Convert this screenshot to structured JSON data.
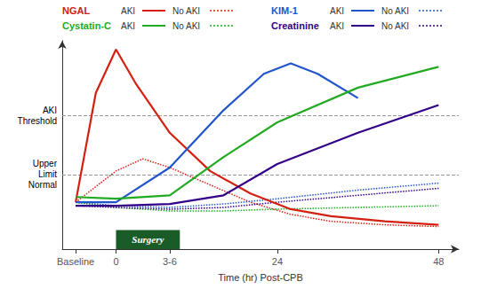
{
  "chart_data": {
    "type": "line",
    "xlabel": "Time (hr) Post-CPB",
    "xlim": [
      -8,
      51
    ],
    "xticks": [
      {
        "value": -6,
        "label": "Baseline"
      },
      0,
      {
        "value": 8,
        "label": "3-6"
      },
      24,
      48
    ],
    "ylim": [
      -0.05,
      1.15
    ],
    "tick_labels": "x",
    "grid": false,
    "series": [
      {
        "name": "NGAL",
        "case": "AKI",
        "color": "#d42010",
        "line_style": "solid",
        "x": [
          -6,
          -3,
          0,
          3,
          8,
          14,
          20,
          26,
          32,
          40,
          48
        ],
        "values": [
          0.22,
          0.85,
          1.1,
          0.9,
          0.62,
          0.4,
          0.27,
          0.18,
          0.14,
          0.11,
          0.09
        ]
      },
      {
        "name": "NGAL",
        "case": "No AKI",
        "color": "#d42010",
        "line_style": "dotted",
        "x": [
          -6,
          0,
          4,
          8,
          14,
          20,
          26,
          32,
          40,
          48
        ],
        "values": [
          0.22,
          0.4,
          0.47,
          0.42,
          0.32,
          0.22,
          0.15,
          0.11,
          0.09,
          0.08
        ]
      },
      {
        "name": "KIM-1",
        "case": "AKI",
        "color": "#2255cc",
        "line_style": "solid",
        "x": [
          -6,
          0,
          8,
          16,
          22,
          26,
          30,
          36
        ],
        "values": [
          0.22,
          0.22,
          0.42,
          0.75,
          0.96,
          1.02,
          0.96,
          0.82
        ]
      },
      {
        "name": "KIM-1",
        "case": "No AKI",
        "color": "#2255cc",
        "line_style": "dotted",
        "x": [
          -6,
          0,
          8,
          16,
          24,
          36,
          48
        ],
        "values": [
          0.22,
          0.2,
          0.19,
          0.21,
          0.24,
          0.29,
          0.33
        ]
      },
      {
        "name": "Cystatin-C",
        "case": "AKI",
        "color": "#22aa22",
        "line_style": "solid",
        "x": [
          -6,
          0,
          8,
          16,
          24,
          36,
          48
        ],
        "values": [
          0.25,
          0.24,
          0.26,
          0.48,
          0.68,
          0.88,
          1.0
        ]
      },
      {
        "name": "Cystatin-C",
        "case": "No AKI",
        "color": "#22aa22",
        "line_style": "dotted",
        "x": [
          -6,
          0,
          8,
          16,
          24,
          36,
          48
        ],
        "values": [
          0.22,
          0.19,
          0.17,
          0.17,
          0.18,
          0.19,
          0.2
        ]
      },
      {
        "name": "Creatinine",
        "case": "AKI",
        "color": "#330088",
        "line_style": "solid",
        "x": [
          -6,
          0,
          8,
          16,
          24,
          36,
          48
        ],
        "values": [
          0.2,
          0.2,
          0.21,
          0.26,
          0.44,
          0.62,
          0.78
        ]
      },
      {
        "name": "Creatinine",
        "case": "No AKI",
        "color": "#330088",
        "line_style": "dotted",
        "x": [
          -6,
          0,
          8,
          16,
          24,
          36,
          48
        ],
        "values": [
          0.2,
          0.19,
          0.18,
          0.19,
          0.22,
          0.26,
          0.3
        ]
      }
    ],
    "hlines": [
      {
        "y": 0.72,
        "label": "AKI\nThreshold",
        "color": "#999999"
      },
      {
        "y": 0.38,
        "label": "Upper\nLimit\nNormal",
        "color": "#999999"
      }
    ],
    "annotations": [
      {
        "text": "Surgery",
        "x": [
          0,
          9.5
        ],
        "y": [
          -0.05,
          0.06
        ],
        "color": "#1a5c28",
        "text_color": "#ffffff"
      }
    ]
  }
}
